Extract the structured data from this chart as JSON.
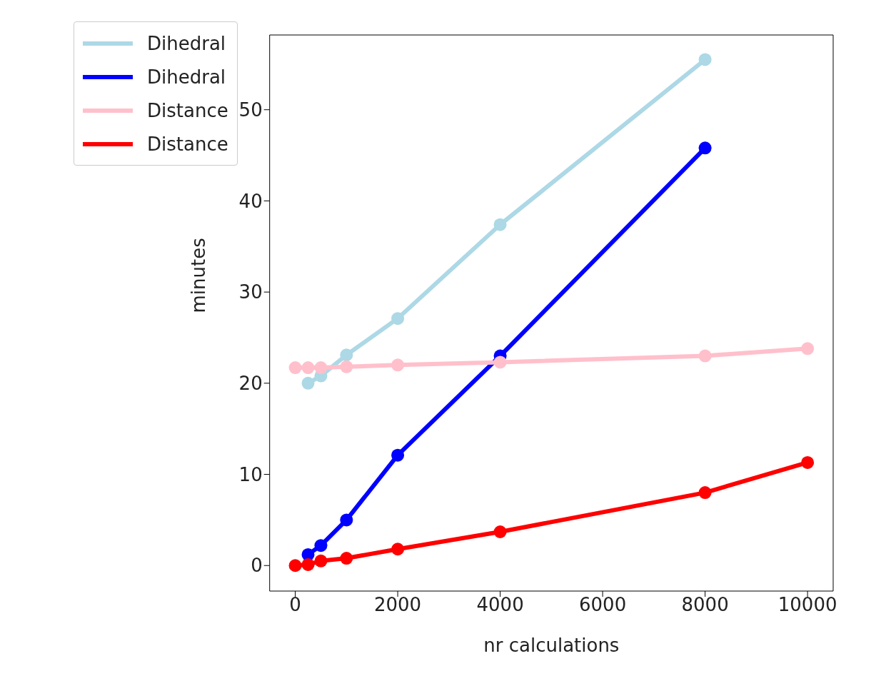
{
  "chart_data": {
    "type": "line",
    "xlabel": "nr calculations",
    "ylabel": "minutes",
    "xlim": [
      -500,
      10500
    ],
    "xticks": [
      0,
      2000,
      4000,
      6000,
      8000,
      10000
    ],
    "ylim": [
      -2.8,
      58.2
    ],
    "yticks": [
      0,
      10,
      20,
      30,
      40,
      50
    ],
    "legend": "top left",
    "marker": "circle",
    "series": [
      {
        "name": "Dihedral",
        "color": "#add8e6",
        "x": [
          250,
          500,
          1000,
          2000,
          4000,
          8000
        ],
        "values": [
          20.0,
          20.8,
          23.1,
          27.1,
          37.4,
          55.5
        ]
      },
      {
        "name": "Dihedral",
        "color": "#0000ff",
        "x": [
          250,
          500,
          1000,
          2000,
          4000,
          8000
        ],
        "values": [
          1.2,
          2.2,
          5.0,
          12.1,
          23.0,
          45.8
        ]
      },
      {
        "name": "Distance",
        "color": "#ffc0cb",
        "x": [
          0,
          250,
          500,
          1000,
          2000,
          4000,
          8000,
          10000
        ],
        "values": [
          21.7,
          21.7,
          21.7,
          21.8,
          22.0,
          22.3,
          23.0,
          23.8
        ]
      },
      {
        "name": "Distance",
        "color": "#ff0000",
        "x": [
          0,
          250,
          500,
          1000,
          2000,
          4000,
          8000,
          10000
        ],
        "values": [
          0,
          0.1,
          0.5,
          0.8,
          1.8,
          3.7,
          8.0,
          11.3
        ]
      }
    ]
  }
}
